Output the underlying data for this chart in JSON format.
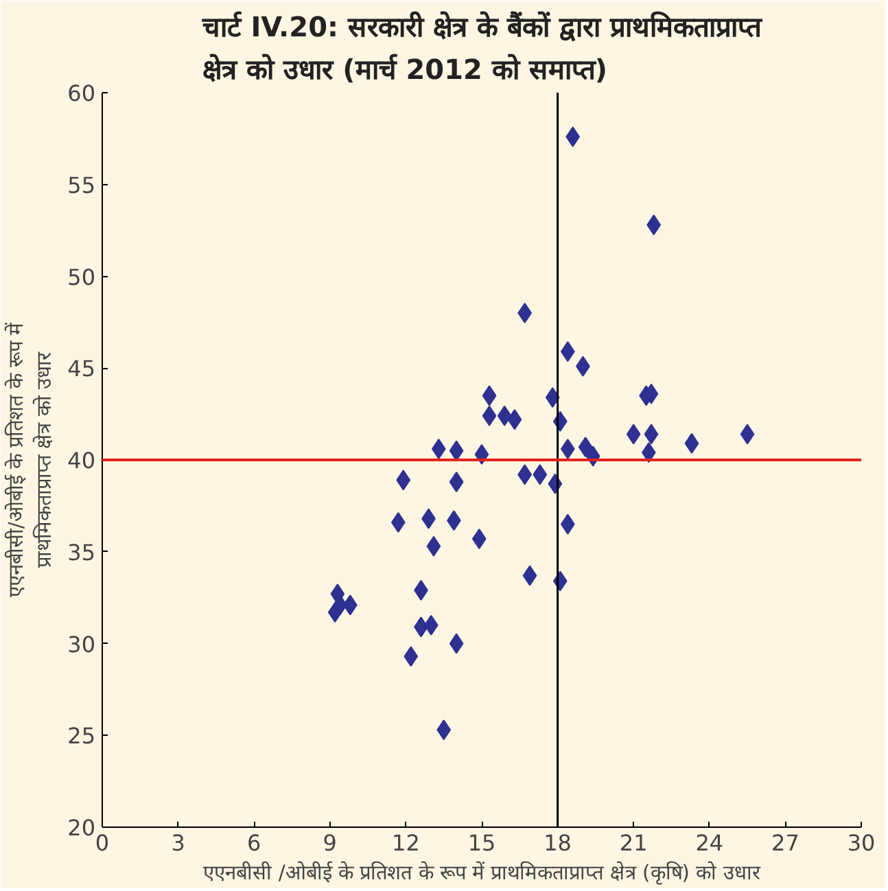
{
  "chart_data": {
    "type": "scatter",
    "title": "चार्ट IV.20: सरकारी क्षेत्र के बैंकों द्वारा प्राथमिकताप्राप्त\nक्षेत्र को उधार (मार्च 2012 को समाप्त)",
    "xlabel": "एएनबीसी /ओबीई के प्रतिशत के रूप में प्राथमिकताप्राप्त क्षेत्र (कृषि) को उधार",
    "ylabel": "एएनबीसी/ओबीई के प्रतिशत के रूप में\nप्राथमिकताप्राप्त क्षेत्र को उधार",
    "x": [
      18.6,
      21.8,
      16.7,
      18.4,
      19.0,
      15.3,
      17.8,
      21.5,
      21.7,
      15.3,
      15.9,
      16.3,
      18.1,
      21.0,
      21.7,
      23.3,
      25.5,
      13.3,
      14.0,
      15.0,
      18.4,
      19.1,
      19.4,
      21.6,
      11.9,
      14.0,
      16.7,
      17.3,
      17.9,
      11.7,
      12.9,
      13.9,
      13.1,
      14.9,
      18.4,
      16.9,
      18.1,
      9.3,
      9.4,
      9.8,
      9.2,
      12.6,
      12.6,
      13.0,
      14.0,
      12.2,
      13.5
    ],
    "series": [
      {
        "color": "#2e3192",
        "values": [
          57.6,
          52.8,
          48.0,
          45.9,
          45.1,
          43.5,
          43.4,
          43.5,
          43.6,
          42.4,
          42.4,
          42.2,
          42.1,
          41.4,
          41.4,
          40.9,
          41.4,
          40.6,
          40.5,
          40.3,
          40.6,
          40.7,
          40.2,
          40.4,
          38.9,
          38.8,
          39.2,
          39.2,
          38.7,
          36.6,
          36.8,
          36.7,
          35.3,
          35.7,
          36.5,
          33.7,
          33.4,
          32.7,
          32.1,
          32.1,
          31.7,
          32.9,
          30.9,
          31.0,
          30.0,
          29.3,
          25.3
        ]
      }
    ],
    "marker": "diamond",
    "xlim": [
      0,
      30
    ],
    "ylim": [
      20,
      60
    ],
    "xticks": [
      0,
      3,
      6,
      9,
      12,
      15,
      18,
      21,
      24,
      27,
      30
    ],
    "yticks": [
      20,
      25,
      30,
      35,
      40,
      45,
      50,
      55,
      60
    ],
    "ref_lines": [
      {
        "axis": "x",
        "value": 18,
        "color": "#000000"
      },
      {
        "axis": "y",
        "value": 40,
        "color": "#e32219"
      }
    ]
  }
}
